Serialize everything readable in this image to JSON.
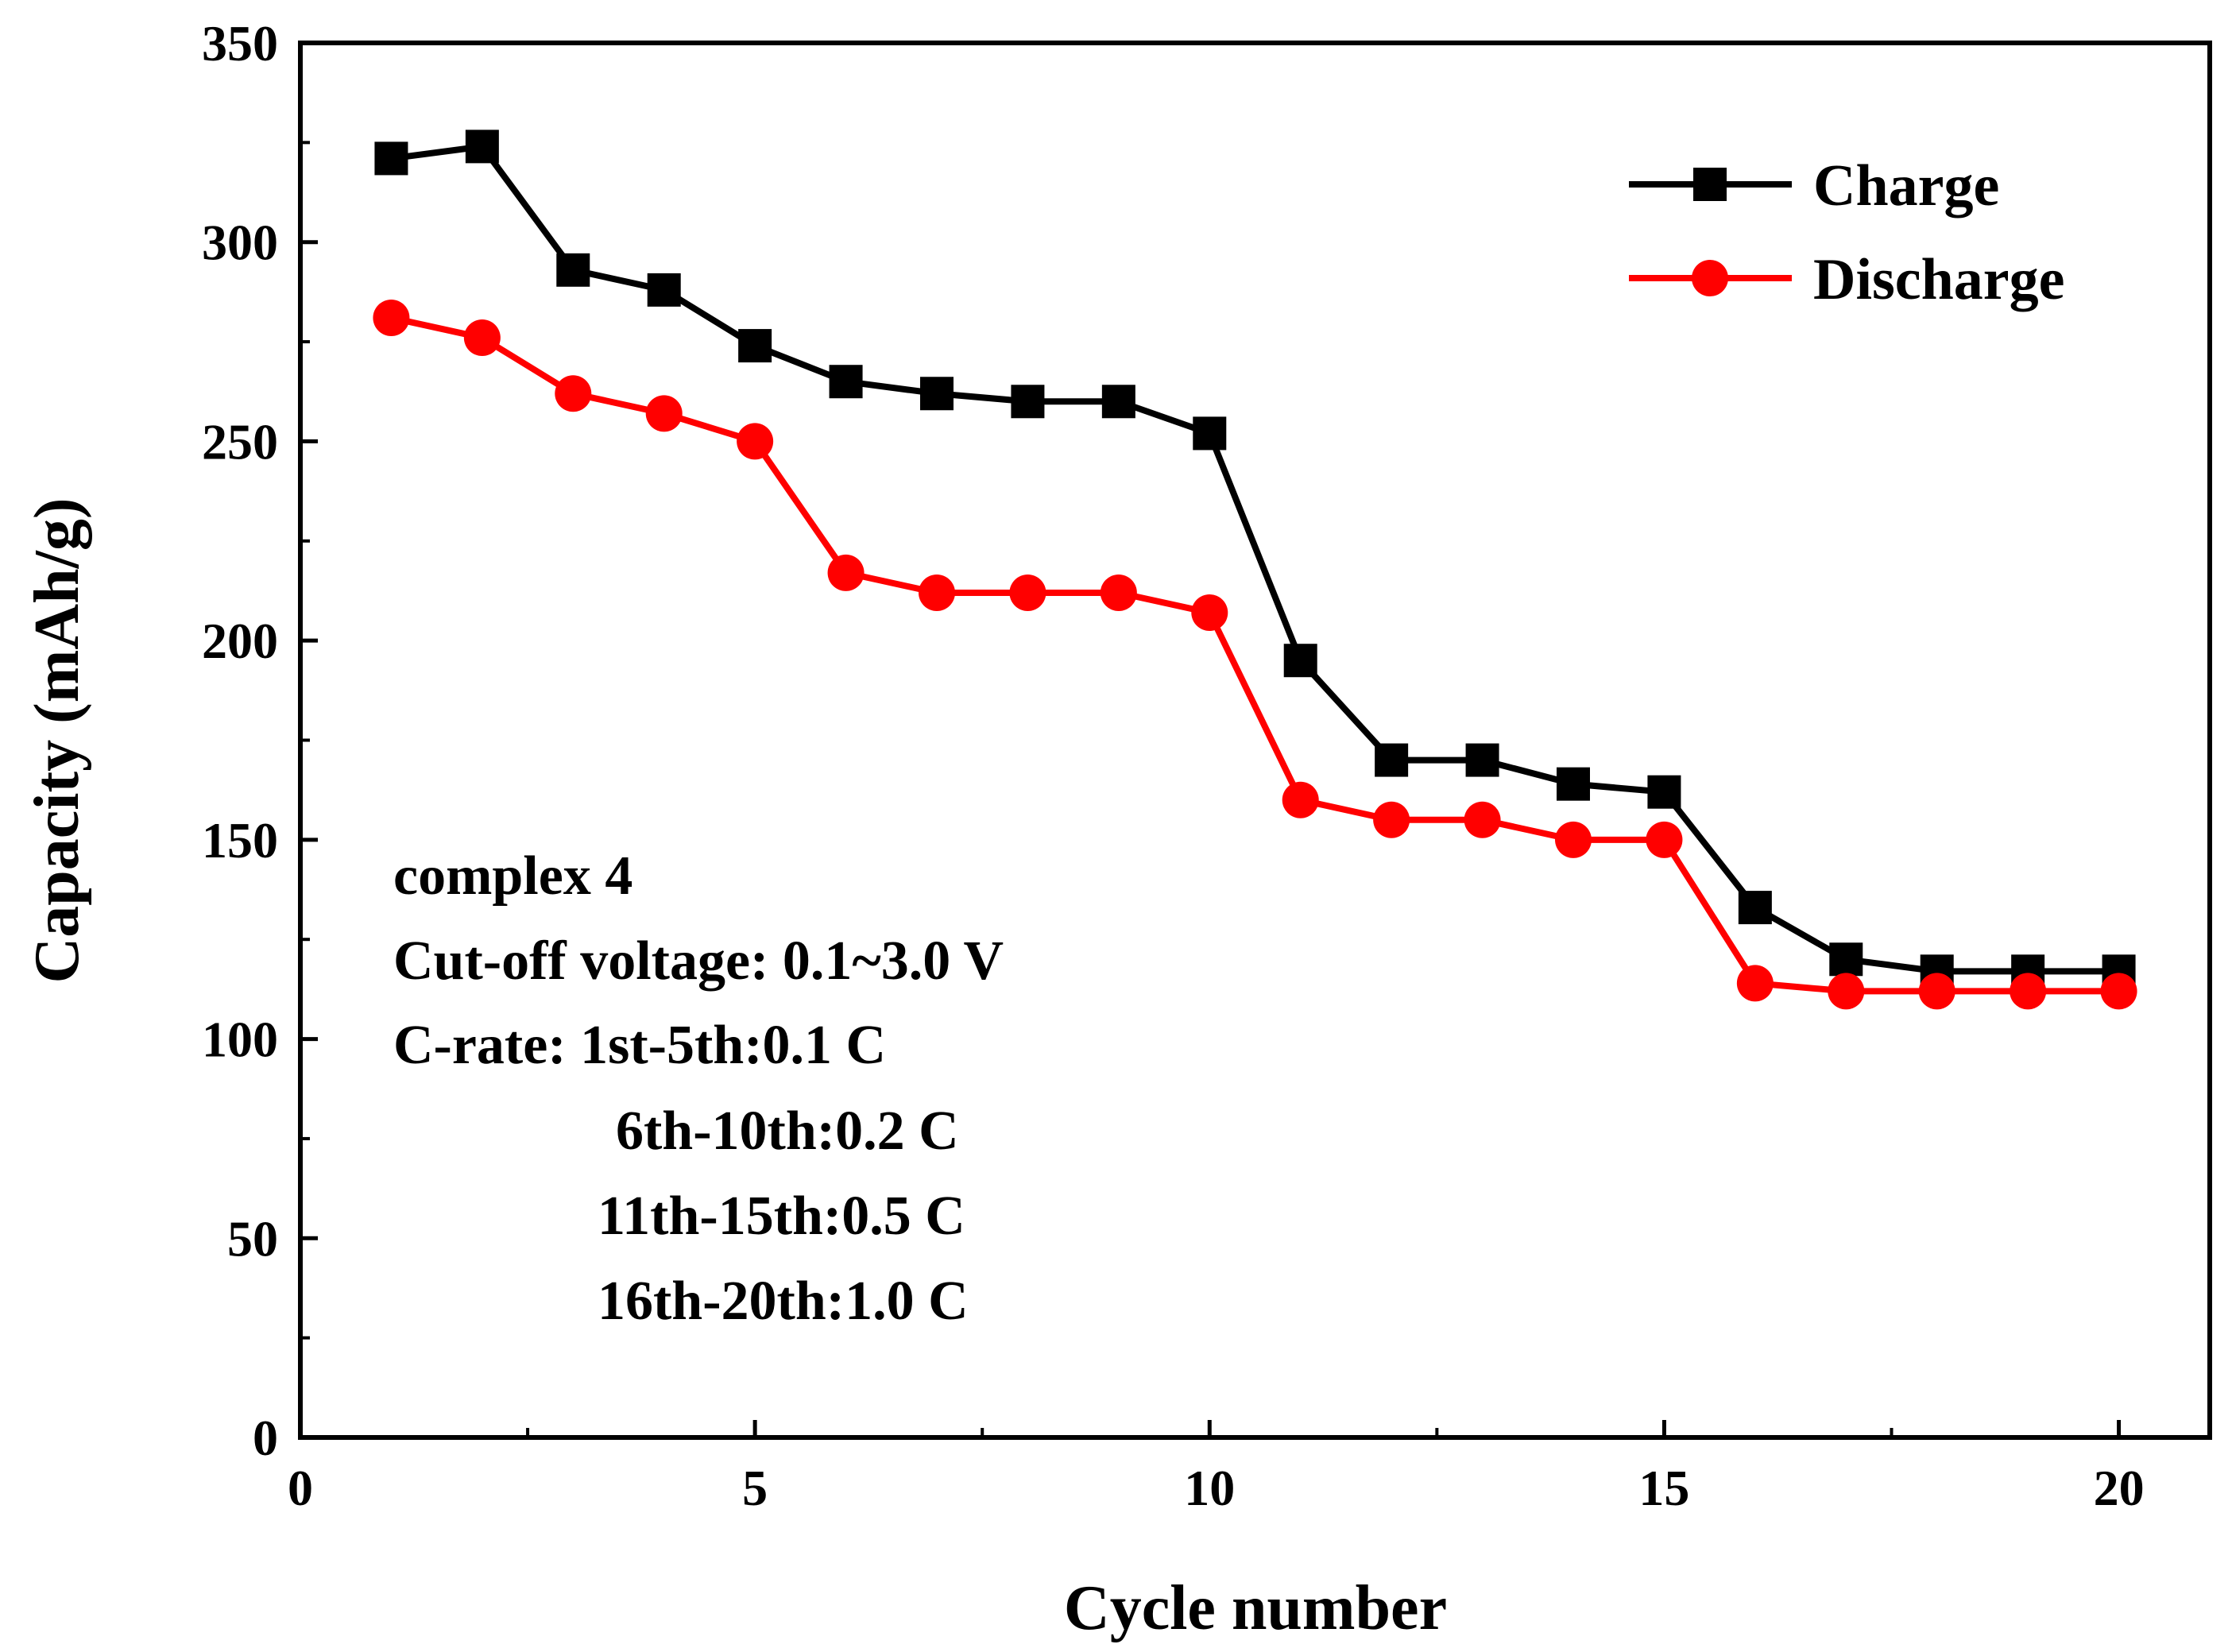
{
  "chart_data": {
    "type": "line",
    "xlabel": "Cycle number",
    "ylabel": "Capacity (mAh/g)",
    "xlim": [
      0,
      21
    ],
    "ylim": [
      0,
      350
    ],
    "x_ticks": [
      0,
      5,
      10,
      15,
      20
    ],
    "x_tick_labels": [
      "0",
      "5",
      "10",
      "15",
      "20"
    ],
    "y_ticks": [
      0,
      50,
      100,
      150,
      200,
      250,
      300,
      350
    ],
    "y_tick_labels": [
      "0",
      "50",
      "100",
      "150",
      "200",
      "250",
      "300",
      "350"
    ],
    "grid": false,
    "legend_position": "top-right",
    "x": [
      1,
      2,
      3,
      4,
      5,
      6,
      7,
      8,
      9,
      10,
      11,
      12,
      13,
      14,
      15,
      16,
      17,
      18,
      19,
      20
    ],
    "series": [
      {
        "name": "Charge",
        "color": "#000000",
        "marker": "square",
        "values": [
          321,
          324,
          293,
          288,
          274,
          265,
          262,
          260,
          260,
          252,
          195,
          170,
          170,
          164,
          162,
          133,
          120,
          117,
          117,
          117
        ]
      },
      {
        "name": "Discharge",
        "color": "#ff0000",
        "marker": "circle",
        "values": [
          281,
          276,
          262,
          257,
          250,
          217,
          212,
          212,
          212,
          207,
          160,
          155,
          155,
          150,
          150,
          114,
          112,
          112,
          112,
          112
        ]
      }
    ],
    "annotations": [
      "complex 4",
      "Cut-off voltage: 0.1~3.0 V",
      "C-rate: 1st-5th:0.1 C",
      "6th-10th:0.2 C",
      "11th-15th:0.5 C",
      "16th-20th:1.0 C"
    ]
  }
}
